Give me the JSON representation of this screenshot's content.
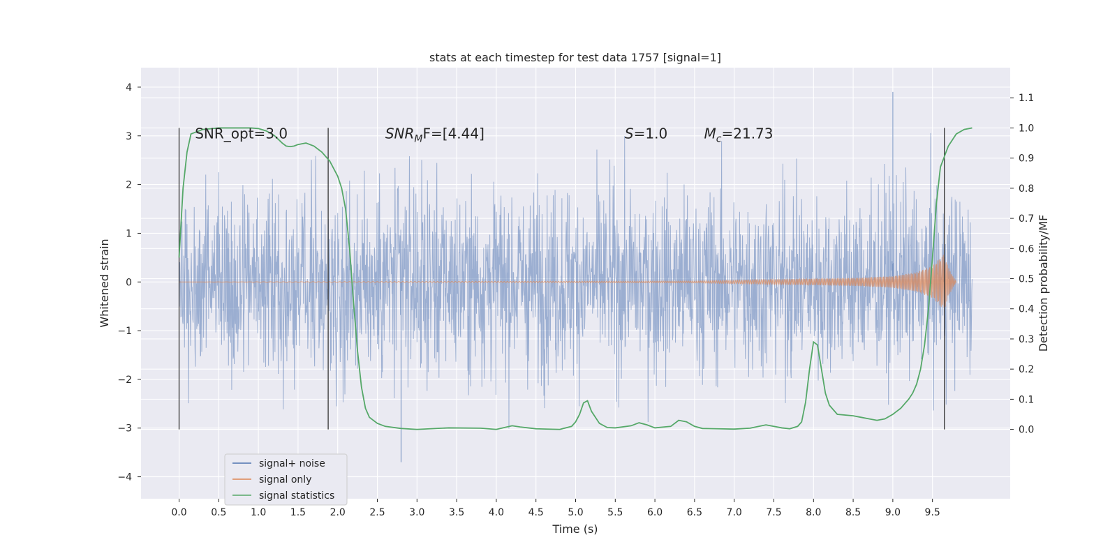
{
  "chart_data": {
    "type": "line",
    "title": "stats at each timestep for test data 1757 [signal=1]",
    "xlabel": "Time (s)",
    "ylabel": "Whitened strain",
    "y2label": "Detection probability/MF",
    "xlim": [
      -0.48,
      10.48
    ],
    "ylim": [
      -4.45,
      4.4
    ],
    "y2lim": [
      -0.23,
      1.2
    ],
    "x_ticks": [
      "0.0",
      "0.5",
      "1.0",
      "1.5",
      "2.0",
      "2.5",
      "3.0",
      "3.5",
      "4.0",
      "4.5",
      "5.0",
      "5.5",
      "6.0",
      "6.5",
      "7.0",
      "7.5",
      "8.0",
      "8.5",
      "9.0",
      "9.5"
    ],
    "y_ticks": [
      "4",
      "3",
      "2",
      "1",
      "0",
      "−1",
      "−2",
      "−3",
      "−4"
    ],
    "y2_ticks": [
      "1.1",
      "1.0",
      "0.9",
      "0.8",
      "0.7",
      "0.6",
      "0.5",
      "0.4",
      "0.3",
      "0.2",
      "0.1",
      "0.0"
    ],
    "grid": true,
    "legend_placement": "lower-left",
    "background_color": "#eaeaf2",
    "series": [
      {
        "name": "signal+ noise",
        "color": "#4c72b0",
        "kind": "noisy strain, x 0 to 10, bulk within ±1.2, peaks near ±3, max ≈ 3.9 at 9.0, min ≈ −3.7 at 2.8",
        "x_range": [
          0,
          10
        ],
        "typical_amplitude": 1.2,
        "max": 3.9,
        "min": -3.7
      },
      {
        "name": "signal only",
        "color": "#dd8452",
        "kind": "chirp, amplitude ~0 until 6.5 rising to ≈0.58 at 9.65 then ringdown to 9.8",
        "x": [
          0,
          6.5,
          7.5,
          8.5,
          9.0,
          9.3,
          9.5,
          9.6,
          9.65,
          9.7,
          9.8
        ],
        "amplitude": [
          0.0,
          0.02,
          0.05,
          0.08,
          0.12,
          0.2,
          0.33,
          0.5,
          0.58,
          0.3,
          0.0
        ]
      },
      {
        "name": "signal statistics",
        "color": "#55a868",
        "axis": "right",
        "x": [
          0.0,
          0.05,
          0.1,
          0.15,
          0.3,
          0.5,
          0.7,
          0.9,
          1.0,
          1.1,
          1.2,
          1.3,
          1.35,
          1.4,
          1.45,
          1.5,
          1.6,
          1.7,
          1.8,
          1.9,
          2.0,
          2.05,
          2.1,
          2.15,
          2.2,
          2.25,
          2.3,
          2.35,
          2.4,
          2.5,
          2.6,
          2.8,
          3.0,
          3.4,
          3.8,
          4.0,
          4.2,
          4.3,
          4.5,
          4.8,
          4.95,
          5.0,
          5.05,
          5.1,
          5.15,
          5.2,
          5.3,
          5.4,
          5.5,
          5.7,
          5.8,
          5.9,
          6.0,
          6.2,
          6.3,
          6.4,
          6.5,
          6.6,
          6.8,
          7.0,
          7.2,
          7.4,
          7.6,
          7.7,
          7.8,
          7.85,
          7.9,
          7.95,
          8.0,
          8.05,
          8.1,
          8.15,
          8.2,
          8.3,
          8.5,
          8.6,
          8.7,
          8.8,
          8.9,
          9.0,
          9.1,
          9.2,
          9.25,
          9.3,
          9.35,
          9.4,
          9.45,
          9.5,
          9.55,
          9.6,
          9.7,
          9.8,
          9.9,
          10.0
        ],
        "values": [
          0.57,
          0.8,
          0.92,
          0.98,
          0.995,
          1.0,
          1.0,
          1.0,
          0.998,
          0.99,
          0.975,
          0.95,
          0.94,
          0.938,
          0.94,
          0.945,
          0.95,
          0.94,
          0.92,
          0.89,
          0.84,
          0.8,
          0.73,
          0.6,
          0.42,
          0.26,
          0.14,
          0.07,
          0.04,
          0.02,
          0.01,
          0.003,
          0.0,
          0.005,
          0.004,
          0.0,
          0.012,
          0.008,
          0.002,
          0.0,
          0.01,
          0.025,
          0.05,
          0.088,
          0.095,
          0.06,
          0.02,
          0.006,
          0.005,
          0.012,
          0.022,
          0.015,
          0.005,
          0.01,
          0.03,
          0.025,
          0.01,
          0.003,
          0.002,
          0.001,
          0.004,
          0.015,
          0.005,
          0.002,
          0.01,
          0.025,
          0.09,
          0.2,
          0.29,
          0.28,
          0.2,
          0.12,
          0.08,
          0.05,
          0.045,
          0.04,
          0.035,
          0.03,
          0.035,
          0.05,
          0.07,
          0.1,
          0.12,
          0.15,
          0.2,
          0.28,
          0.4,
          0.57,
          0.75,
          0.87,
          0.94,
          0.98,
          0.995,
          1.0
        ]
      }
    ],
    "vertical_lines": [
      0.0,
      1.88,
      9.65
    ],
    "annotations": [
      {
        "text": "SNR_opt=3.0",
        "x": 0.2,
        "y": 3.05
      },
      {
        "text_main": "SNR",
        "text_sub": "M",
        "text_rest": "F=[4.44]",
        "x": 2.6,
        "y": 3.05
      },
      {
        "text_main": "S",
        "text_rest": "=1.0",
        "x": 5.62,
        "y": 3.05
      },
      {
        "text_main": "M",
        "text_sub": "c",
        "text_rest": "=21.73",
        "x": 6.62,
        "y": 3.05
      }
    ]
  }
}
